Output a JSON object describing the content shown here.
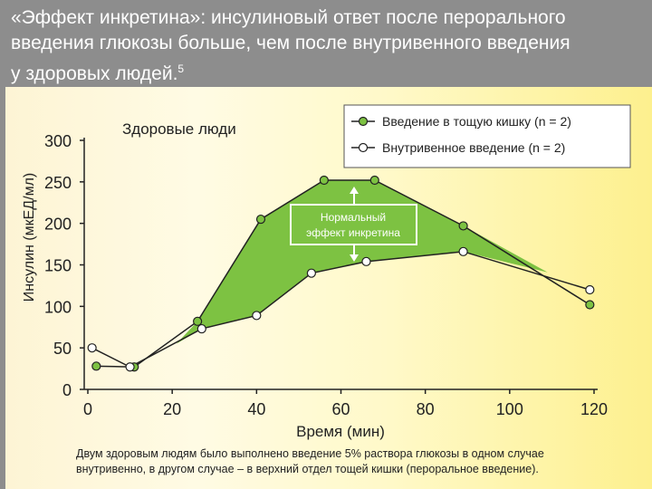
{
  "header": {
    "title_line1": "«Эффект инкретина»: инсулиновый ответ после перорального",
    "title_line2": "введения глюкозы больше, чем после внутривенного введения",
    "title_line3": " у здоровых людей.",
    "title_sup": "5"
  },
  "caption": {
    "line1": "Двум здоровым людям было выполнено введение 5% раствора глюкозы в одном случае",
    "line2": "внутривенно, в другом случае – в верхний отдел тощей кишки (пероральное введение)."
  },
  "colors": {
    "area_fill": "#7dc242",
    "line": "#222222",
    "oral_marker": "#7dc242",
    "iv_marker": "#ffffff",
    "header_bg": "#8d8d8d"
  },
  "chart_data": {
    "type": "line",
    "title": "Здоровые люди",
    "xlabel": "Время (мин)",
    "ylabel": "Инсулин (мкЕД/мл)",
    "xlim": [
      0,
      120
    ],
    "ylim": [
      0,
      300
    ],
    "xticks": [
      0,
      20,
      40,
      60,
      80,
      100,
      120
    ],
    "yticks": [
      0,
      50,
      100,
      150,
      200,
      250,
      300
    ],
    "legend_position": "top-right",
    "annotation": [
      "Нормальный",
      "эффект инкретина"
    ],
    "series": [
      {
        "name": "Введение в тощую кишку (n = 2)",
        "marker": "filled",
        "x": [
          2,
          11,
          26,
          41,
          56,
          68,
          89,
          119
        ],
        "y": [
          28,
          27,
          82,
          205,
          252,
          252,
          197,
          102
        ]
      },
      {
        "name": "Внутривенное введение (n = 2)",
        "marker": "open",
        "x": [
          1,
          10,
          27,
          40,
          53,
          66,
          89,
          119
        ],
        "y": [
          50,
          27,
          73,
          89,
          140,
          154,
          166,
          120
        ]
      }
    ]
  }
}
